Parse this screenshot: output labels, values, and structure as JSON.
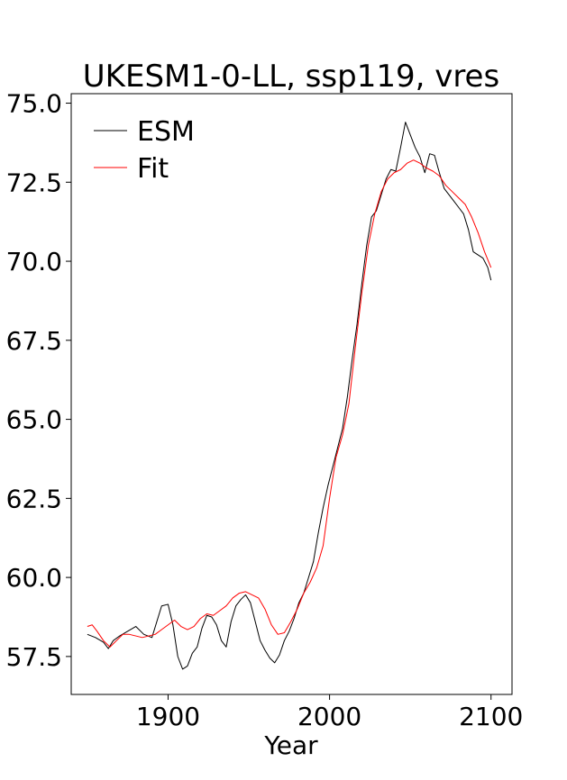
{
  "chart_data": {
    "type": "line",
    "title": "UKESM1-0-LL, ssp119, vres",
    "xlabel": "Year",
    "ylabel": "",
    "xlim": [
      1840,
      2113
    ],
    "ylim": [
      56.3,
      75.3
    ],
    "x_ticks": [
      1900,
      2000,
      2100
    ],
    "y_ticks": [
      57.5,
      60.0,
      62.5,
      65.0,
      67.5,
      70.0,
      72.5,
      75.0
    ],
    "x_tick_labels": [
      "1900",
      "2000",
      "2100"
    ],
    "y_tick_labels": [
      "57.5",
      "60.0",
      "62.5",
      "65.0",
      "67.5",
      "70.0",
      "72.5",
      "75.0"
    ],
    "grid": false,
    "legend": "top-left",
    "series": [
      {
        "name": "ESM",
        "color": "#000000",
        "points": [
          [
            1850,
            58.2
          ],
          [
            1855,
            58.1
          ],
          [
            1860,
            57.95
          ],
          [
            1863,
            57.75
          ],
          [
            1866,
            58.0
          ],
          [
            1870,
            58.15
          ],
          [
            1875,
            58.3
          ],
          [
            1880,
            58.45
          ],
          [
            1885,
            58.2
          ],
          [
            1890,
            58.1
          ],
          [
            1893,
            58.6
          ],
          [
            1896,
            59.1
          ],
          [
            1900,
            59.15
          ],
          [
            1903,
            58.5
          ],
          [
            1906,
            57.5
          ],
          [
            1909,
            57.1
          ],
          [
            1912,
            57.2
          ],
          [
            1915,
            57.6
          ],
          [
            1918,
            57.8
          ],
          [
            1921,
            58.4
          ],
          [
            1924,
            58.8
          ],
          [
            1927,
            58.75
          ],
          [
            1930,
            58.5
          ],
          [
            1933,
            58.0
          ],
          [
            1936,
            57.8
          ],
          [
            1939,
            58.6
          ],
          [
            1942,
            59.1
          ],
          [
            1945,
            59.3
          ],
          [
            1948,
            59.45
          ],
          [
            1951,
            59.2
          ],
          [
            1954,
            58.6
          ],
          [
            1957,
            58.0
          ],
          [
            1960,
            57.7
          ],
          [
            1963,
            57.45
          ],
          [
            1966,
            57.3
          ],
          [
            1969,
            57.55
          ],
          [
            1972,
            58.0
          ],
          [
            1975,
            58.3
          ],
          [
            1978,
            58.7
          ],
          [
            1981,
            59.2
          ],
          [
            1984,
            59.5
          ],
          [
            1987,
            60.0
          ],
          [
            1990,
            60.5
          ],
          [
            1993,
            61.4
          ],
          [
            1996,
            62.2
          ],
          [
            1999,
            62.9
          ],
          [
            2002,
            63.5
          ],
          [
            2005,
            64.1
          ],
          [
            2008,
            64.7
          ],
          [
            2011,
            65.7
          ],
          [
            2014,
            66.9
          ],
          [
            2017,
            68.0
          ],
          [
            2020,
            69.3
          ],
          [
            2023,
            70.5
          ],
          [
            2026,
            71.4
          ],
          [
            2029,
            71.6
          ],
          [
            2032,
            72.1
          ],
          [
            2035,
            72.6
          ],
          [
            2038,
            72.9
          ],
          [
            2041,
            72.85
          ],
          [
            2044,
            73.6
          ],
          [
            2047,
            74.4
          ],
          [
            2050,
            74.0
          ],
          [
            2053,
            73.6
          ],
          [
            2056,
            73.3
          ],
          [
            2059,
            72.8
          ],
          [
            2062,
            73.4
          ],
          [
            2065,
            73.35
          ],
          [
            2068,
            72.8
          ],
          [
            2071,
            72.3
          ],
          [
            2074,
            72.1
          ],
          [
            2077,
            71.9
          ],
          [
            2080,
            71.7
          ],
          [
            2083,
            71.5
          ],
          [
            2086,
            71.0
          ],
          [
            2089,
            70.3
          ],
          [
            2092,
            70.2
          ],
          [
            2095,
            70.1
          ],
          [
            2098,
            69.8
          ],
          [
            2100,
            69.4
          ]
        ]
      },
      {
        "name": "Fit",
        "color": "#ff0000",
        "points": [
          [
            1850,
            58.45
          ],
          [
            1853,
            58.5
          ],
          [
            1856,
            58.3
          ],
          [
            1860,
            58.0
          ],
          [
            1864,
            57.8
          ],
          [
            1868,
            58.0
          ],
          [
            1872,
            58.2
          ],
          [
            1876,
            58.2
          ],
          [
            1880,
            58.15
          ],
          [
            1884,
            58.1
          ],
          [
            1888,
            58.15
          ],
          [
            1892,
            58.2
          ],
          [
            1896,
            58.35
          ],
          [
            1900,
            58.5
          ],
          [
            1904,
            58.65
          ],
          [
            1908,
            58.45
          ],
          [
            1912,
            58.35
          ],
          [
            1916,
            58.45
          ],
          [
            1920,
            58.7
          ],
          [
            1924,
            58.85
          ],
          [
            1928,
            58.8
          ],
          [
            1932,
            58.95
          ],
          [
            1936,
            59.1
          ],
          [
            1940,
            59.35
          ],
          [
            1944,
            59.5
          ],
          [
            1948,
            59.55
          ],
          [
            1952,
            59.45
          ],
          [
            1956,
            59.35
          ],
          [
            1960,
            59.0
          ],
          [
            1964,
            58.5
          ],
          [
            1968,
            58.2
          ],
          [
            1972,
            58.25
          ],
          [
            1976,
            58.6
          ],
          [
            1980,
            59.0
          ],
          [
            1984,
            59.5
          ],
          [
            1988,
            59.85
          ],
          [
            1992,
            60.3
          ],
          [
            1996,
            61.0
          ],
          [
            2000,
            62.5
          ],
          [
            2004,
            63.8
          ],
          [
            2008,
            64.5
          ],
          [
            2012,
            65.5
          ],
          [
            2016,
            67.3
          ],
          [
            2020,
            69.0
          ],
          [
            2024,
            70.5
          ],
          [
            2028,
            71.5
          ],
          [
            2032,
            72.2
          ],
          [
            2036,
            72.6
          ],
          [
            2040,
            72.8
          ],
          [
            2044,
            72.9
          ],
          [
            2048,
            73.1
          ],
          [
            2052,
            73.2
          ],
          [
            2056,
            73.1
          ],
          [
            2060,
            72.95
          ],
          [
            2064,
            72.85
          ],
          [
            2068,
            72.7
          ],
          [
            2072,
            72.4
          ],
          [
            2076,
            72.2
          ],
          [
            2080,
            72.0
          ],
          [
            2084,
            71.8
          ],
          [
            2088,
            71.4
          ],
          [
            2092,
            70.9
          ],
          [
            2096,
            70.3
          ],
          [
            2100,
            69.8
          ]
        ]
      }
    ]
  }
}
